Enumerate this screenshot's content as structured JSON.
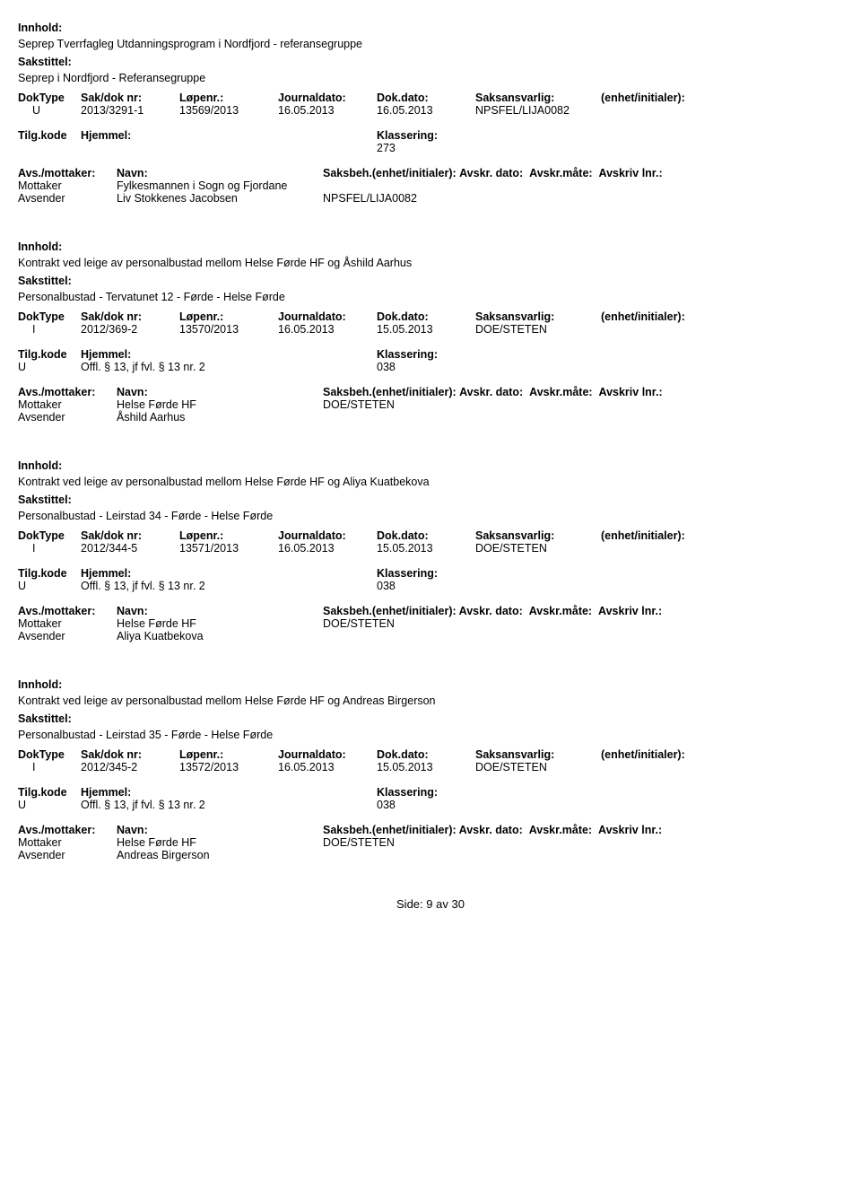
{
  "labels": {
    "innhold": "Innhold:",
    "sakstittel": "Sakstittel:",
    "doktype": "DokType",
    "sakdok": "Sak/dok nr:",
    "lopenr": "Løpenr.:",
    "journaldato": "Journaldato:",
    "dokdato": "Dok.dato:",
    "saksansvarlig": "Saksansvarlig:",
    "enhet": "(enhet/initialer):",
    "tilgkode": "Tilg.kode",
    "hjemmel": "Hjemmel:",
    "klassering": "Klassering:",
    "avsmottaker": "Avs./mottaker:",
    "navn": "Navn:",
    "saksbeh": "Saksbeh.",
    "saksbeh_ei": "(enhet/initialer):",
    "avskrdato": "Avskr. dato:",
    "avskrmate": "Avskr.måte:",
    "avskrivlnr": "Avskriv lnr.:",
    "mottaker": "Mottaker",
    "avsender": "Avsender"
  },
  "entries": [
    {
      "innhold": "Seprep Tverrfagleg Utdanningsprogram i Nordfjord - referansegruppe",
      "sakstittel": "Seprep i Nordfjord - Referansegruppe",
      "doktype": "U",
      "sakdok": "2013/3291-1",
      "lopenr": "13569/2013",
      "journaldato": "16.05.2013",
      "dokdato": "16.05.2013",
      "saksansvarlig": "NPSFEL/LIJA0082",
      "tilgkode": "",
      "hjemmel": "",
      "klassering": "273",
      "show_nav_header": false,
      "mottaker_navn": "Fylkesmannen i Sogn og Fjordane",
      "mottaker_saksbeh": "",
      "avsender_navn": "Liv  Stokkenes  Jacobsen",
      "avsender_saksbeh": "NPSFEL/LIJA0082"
    },
    {
      "innhold": "Kontrakt ved leige av personalbustad mellom Helse Førde HF og Åshild Aarhus",
      "sakstittel": "Personalbustad - Tervatunet 12 - Førde - Helse Førde",
      "doktype": "I",
      "sakdok": "2012/369-2",
      "lopenr": "13570/2013",
      "journaldato": "16.05.2013",
      "dokdato": "15.05.2013",
      "saksansvarlig": "DOE/STETEN",
      "tilgkode": "U",
      "hjemmel": "Offl. § 13, jf fvl. § 13 nr. 2",
      "klassering": "038",
      "show_nav_header": false,
      "mottaker_navn": "Helse Førde HF",
      "mottaker_saksbeh": "DOE/STETEN",
      "avsender_navn": "Åshild Aarhus",
      "avsender_saksbeh": ""
    },
    {
      "innhold": "Kontrakt ved leige av personalbustad mellom Helse Førde HF og Aliya Kuatbekova",
      "sakstittel": "Personalbustad - Leirstad 34 - Førde - Helse Førde",
      "doktype": "I",
      "sakdok": "2012/344-5",
      "lopenr": "13571/2013",
      "journaldato": "16.05.2013",
      "dokdato": "15.05.2013",
      "saksansvarlig": "DOE/STETEN",
      "tilgkode": "U",
      "hjemmel": "Offl. § 13, jf fvl. § 13 nr. 2",
      "klassering": "038",
      "show_nav_header": true,
      "mottaker_navn": "Helse Førde HF",
      "mottaker_saksbeh": "DOE/STETEN",
      "avsender_navn": "Aliya Kuatbekova",
      "avsender_saksbeh": ""
    },
    {
      "innhold": "Kontrakt ved leige av personalbustad mellom Helse Førde HF og Andreas Birgerson",
      "sakstittel": "Personalbustad - Leirstad 35 - Førde - Helse Førde",
      "doktype": "I",
      "sakdok": "2012/345-2",
      "lopenr": "13572/2013",
      "journaldato": "16.05.2013",
      "dokdato": "15.05.2013",
      "saksansvarlig": "DOE/STETEN",
      "tilgkode": "U",
      "hjemmel": "Offl. § 13, jf fvl. § 13 nr. 2",
      "klassering": "038",
      "show_nav_header": true,
      "mottaker_navn": "Helse Førde HF",
      "mottaker_saksbeh": "DOE/STETEN",
      "avsender_navn": "Andreas Birgerson",
      "avsender_saksbeh": ""
    }
  ],
  "footer": {
    "side": "Side:",
    "page": "9",
    "av": "av",
    "total": "30"
  }
}
